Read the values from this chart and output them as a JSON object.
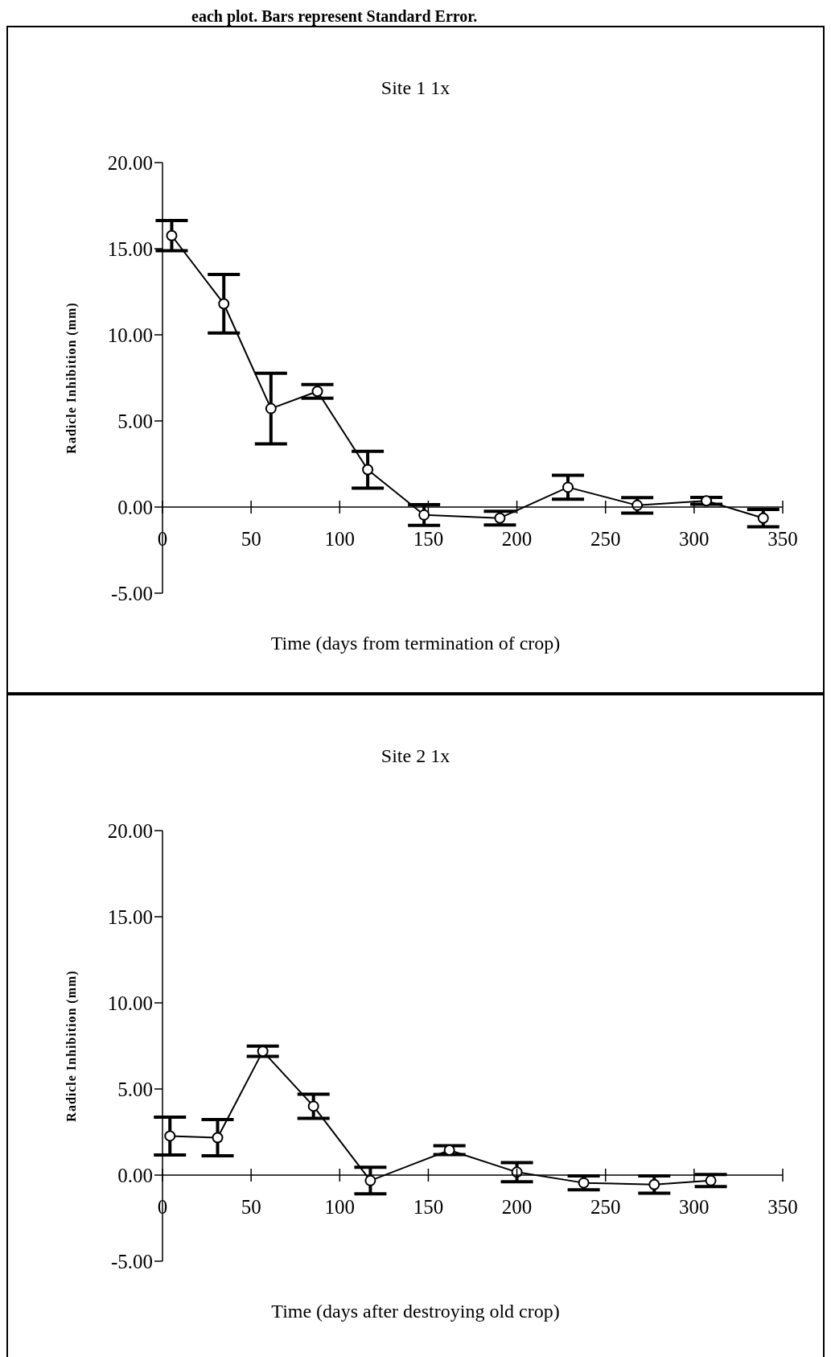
{
  "chart_data": [
    {
      "type": "line",
      "title": "Site 1 1x",
      "xlabel": "Time (days from termination of crop)",
      "ylabel": "Radicle Inhibition (mm)",
      "annotations": [
        "each plot. Bars represent Standard Error."
      ],
      "color": "#000000",
      "marker": "circle",
      "line_style": "solid",
      "x": [
        5.2,
        34.6,
        61.2,
        87.4,
        115.8,
        147.6,
        190.4,
        228.8,
        267.9,
        306.9,
        339
      ],
      "values": [
        15.76,
        11.8,
        5.72,
        6.72,
        2.17,
        -0.46,
        -0.64,
        1.15,
        0.1,
        0.36,
        -0.64
      ],
      "errors": [
        0.88,
        1.7,
        2.05,
        0.4,
        1.07,
        0.6,
        0.4,
        0.7,
        0.45,
        0.2,
        0.5
      ],
      "xlim": [
        0,
        350
      ],
      "xticks": [
        0,
        50,
        100,
        150,
        200,
        250,
        300,
        350
      ],
      "ylim": [
        -5,
        20
      ],
      "yticks": [
        {
          "value": -5,
          "label": "-5.00"
        },
        {
          "value": 0,
          "label": "0.00"
        },
        {
          "value": 5,
          "label": "5.00"
        },
        {
          "value": 10,
          "label": "10.00"
        },
        {
          "value": 15,
          "label": "15.00"
        },
        {
          "value": 20,
          "label": "20.00"
        }
      ]
    },
    {
      "type": "line",
      "title": "Site 2 1x",
      "xlabel": "Time (days after destroying old crop)",
      "ylabel": "Radicle Inhibition (mm)",
      "color": "#000000",
      "marker": "circle",
      "line_style": "solid",
      "x": [
        4.2,
        31.1,
        56.6,
        85.2,
        117.3,
        161.9,
        200,
        237.7,
        277.5,
        309.4
      ],
      "values": [
        2.27,
        2.17,
        7.19,
        4.0,
        -0.32,
        1.45,
        0.17,
        -0.45,
        -0.55,
        -0.32
      ],
      "errors": [
        1.1,
        1.05,
        0.3,
        0.7,
        0.77,
        0.26,
        0.55,
        0.4,
        0.5,
        0.35
      ],
      "xlim": [
        0,
        350
      ],
      "xticks": [
        0,
        50,
        100,
        150,
        200,
        250,
        300,
        350
      ],
      "ylim": [
        -5,
        20
      ],
      "yticks": [
        {
          "value": -5,
          "label": "-5.00"
        },
        {
          "value": 0,
          "label": "0.00"
        },
        {
          "value": 5,
          "label": "5.00"
        },
        {
          "value": 10,
          "label": "10.00"
        },
        {
          "value": 15,
          "label": "15.00"
        },
        {
          "value": 20,
          "label": "20.00"
        }
      ]
    }
  ]
}
